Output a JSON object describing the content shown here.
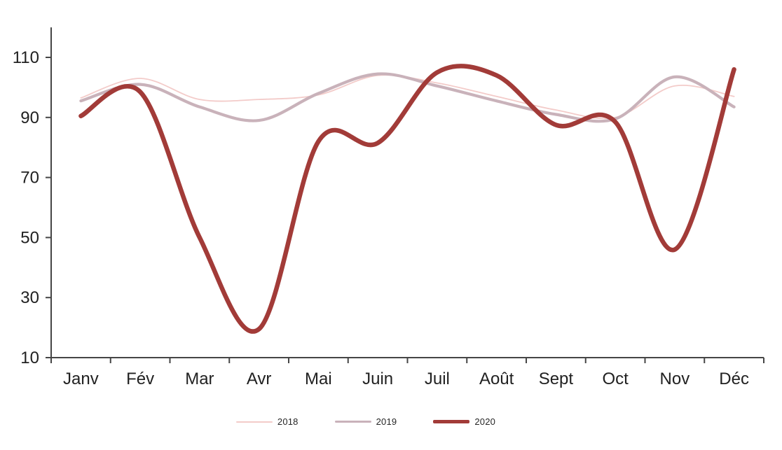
{
  "chart_data": {
    "type": "line",
    "smooth": true,
    "grid": false,
    "legend_position": "bottom",
    "categories": [
      "Janv",
      "Fév",
      "Mar",
      "Avr",
      "Mai",
      "Juin",
      "Juil",
      "Août",
      "Sept",
      "Oct",
      "Nov",
      "Déc"
    ],
    "y_ticks": [
      110,
      90,
      70,
      50,
      30,
      10
    ],
    "ylim": [
      10,
      120
    ],
    "series": [
      {
        "name": "2018",
        "color": "#f3cbc9",
        "stroke_width": 1.8,
        "values": [
          96.5,
          103,
          96,
          96,
          97.5,
          104,
          101.5,
          97,
          92.5,
          90,
          100.5,
          97
        ]
      },
      {
        "name": "2019",
        "color": "#c9b2ba",
        "stroke_width": 4.2,
        "values": [
          95.5,
          101,
          93.5,
          89,
          98,
          104.5,
          100.5,
          95.5,
          91,
          89.5,
          103.5,
          93.5
        ]
      },
      {
        "name": "2020",
        "color": "#a23b38",
        "stroke_width": 6.5,
        "values": [
          90.5,
          98.5,
          50,
          19.5,
          82,
          81.5,
          105,
          104,
          87.5,
          88.5,
          46,
          106
        ]
      }
    ],
    "axis_color": "#454545",
    "label_color": "#212121"
  }
}
